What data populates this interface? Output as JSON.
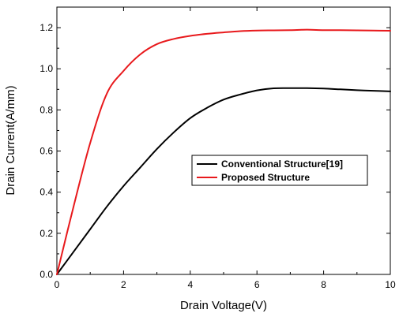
{
  "chart_data": {
    "type": "line",
    "title": "",
    "xlabel": "Drain Voltage(V)",
    "ylabel": "Drain Current(A/mm)",
    "xlim": [
      0,
      10
    ],
    "ylim": [
      0,
      1.3
    ],
    "xticks": [
      "0",
      "2",
      "4",
      "6",
      "8",
      "10"
    ],
    "yticks": [
      "0.0",
      "0.2",
      "0.4",
      "0.6",
      "0.8",
      "1.0",
      "1.2"
    ],
    "grid": false,
    "legend_position": "center-right",
    "series": [
      {
        "name": "Conventional Structure[19]",
        "color": "#000000",
        "x": [
          0,
          0.5,
          1,
          1.5,
          2,
          2.5,
          3,
          3.5,
          4,
          4.5,
          5,
          5.5,
          6,
          6.5,
          7,
          7.5,
          8,
          8.5,
          9,
          9.5,
          10
        ],
        "y": [
          0,
          0.11,
          0.22,
          0.33,
          0.43,
          0.52,
          0.61,
          0.69,
          0.76,
          0.81,
          0.85,
          0.875,
          0.895,
          0.905,
          0.906,
          0.906,
          0.904,
          0.9,
          0.896,
          0.893,
          0.89
        ]
      },
      {
        "name": "Proposed Structure",
        "color": "#e8191c",
        "x": [
          0,
          0.5,
          1,
          1.5,
          2,
          2.5,
          3,
          3.5,
          4,
          4.5,
          5,
          5.5,
          6,
          6.5,
          7,
          7.5,
          8,
          8.5,
          9,
          9.5,
          10
        ],
        "y": [
          0,
          0.33,
          0.64,
          0.88,
          0.99,
          1.07,
          1.12,
          1.145,
          1.16,
          1.17,
          1.177,
          1.183,
          1.186,
          1.187,
          1.188,
          1.19,
          1.188,
          1.188,
          1.187,
          1.186,
          1.185
        ]
      }
    ]
  }
}
